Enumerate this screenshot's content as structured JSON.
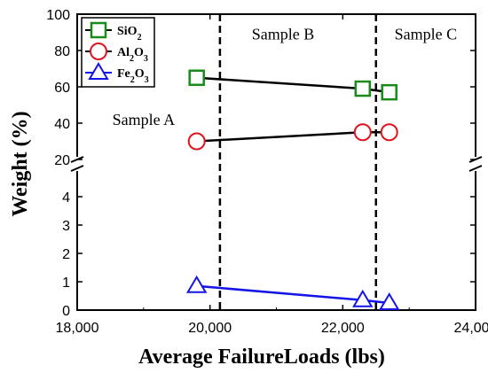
{
  "chart_data": {
    "type": "scatter",
    "xlabel": "Average FailureLoads (lbs)",
    "ylabel": "Weight (%)",
    "xlim": [
      18000,
      24000
    ],
    "x_ticks": [
      "18,000",
      "20,000",
      "22,000",
      "24,000"
    ],
    "ylim_upper": [
      20,
      100
    ],
    "ylim_lower": [
      0,
      5
    ],
    "y_ticks_upper": [
      "20",
      "40",
      "60",
      "80",
      "100"
    ],
    "y_ticks_lower": [
      "0",
      "1",
      "2",
      "3",
      "4"
    ],
    "broken_axis": true,
    "series": [
      {
        "name": "SiO2",
        "name_base": "SiO",
        "name_sub": "2",
        "name_tail": "",
        "color": "#1a8a1a",
        "marker": "square",
        "panel": "upper",
        "x": [
          19800,
          22300,
          22700
        ],
        "y": [
          65,
          59,
          57
        ]
      },
      {
        "name": "Al2O3",
        "name_base": "Al",
        "name_sub": "2",
        "name_tail": "O",
        "name_sub2": "3",
        "color": "#e0141e",
        "marker": "circle",
        "panel": "upper",
        "x": [
          19800,
          22300,
          22700
        ],
        "y": [
          30,
          35,
          35
        ]
      },
      {
        "name": "Fe2O3",
        "name_base": "Fe",
        "name_sub": "2",
        "name_tail": "O",
        "name_sub2": "3",
        "color": "#1414e6",
        "marker": "triangle",
        "panel": "lower",
        "x": [
          19800,
          22300,
          22700
        ],
        "y": [
          0.85,
          0.35,
          0.25
        ]
      }
    ],
    "connecting_lines": [
      {
        "series": "SiO2",
        "color": "#000000",
        "points": [
          [
            19800,
            65
          ],
          [
            22300,
            59
          ],
          [
            22700,
            57
          ]
        ]
      },
      {
        "series": "Al2O3",
        "color": "#000000",
        "points": [
          [
            19800,
            30
          ],
          [
            22300,
            35
          ],
          [
            22700,
            35
          ]
        ]
      },
      {
        "series": "Fe2O3",
        "color": "#1414e6",
        "points": [
          [
            19800,
            0.85
          ],
          [
            22300,
            0.35
          ],
          [
            22700,
            0.25
          ]
        ]
      }
    ],
    "dividers_x": [
      20150,
      22500
    ],
    "regions": [
      {
        "label": "Sample A",
        "x": 19000,
        "panel": "upper",
        "y": 39
      },
      {
        "label": "Sample B",
        "x": 21100,
        "panel": "upper",
        "y": 86
      },
      {
        "label": "Sample C",
        "x": 23250,
        "panel": "upper",
        "y": 86
      }
    ],
    "legend_position": "top-left",
    "grid": false
  }
}
